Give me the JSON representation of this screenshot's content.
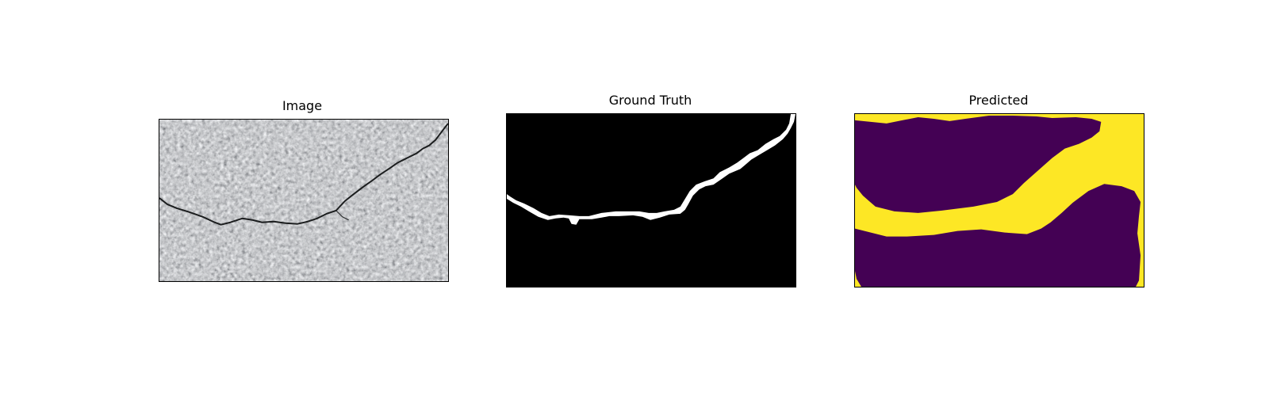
{
  "figure": {
    "panels": [
      {
        "title": "Image",
        "description_name": "input-image"
      },
      {
        "title": "Ground Truth",
        "description_name": "ground-truth-mask"
      },
      {
        "title": "Predicted",
        "description_name": "predicted-mask"
      }
    ],
    "colors": {
      "background": "#ffffff",
      "mask_background": "#000000",
      "mask_foreground": "#ffffff",
      "pred_background": "#440154",
      "pred_foreground": "#fde725",
      "asphalt_base": "#8e9092",
      "crack": "#1b1d1e"
    }
  }
}
